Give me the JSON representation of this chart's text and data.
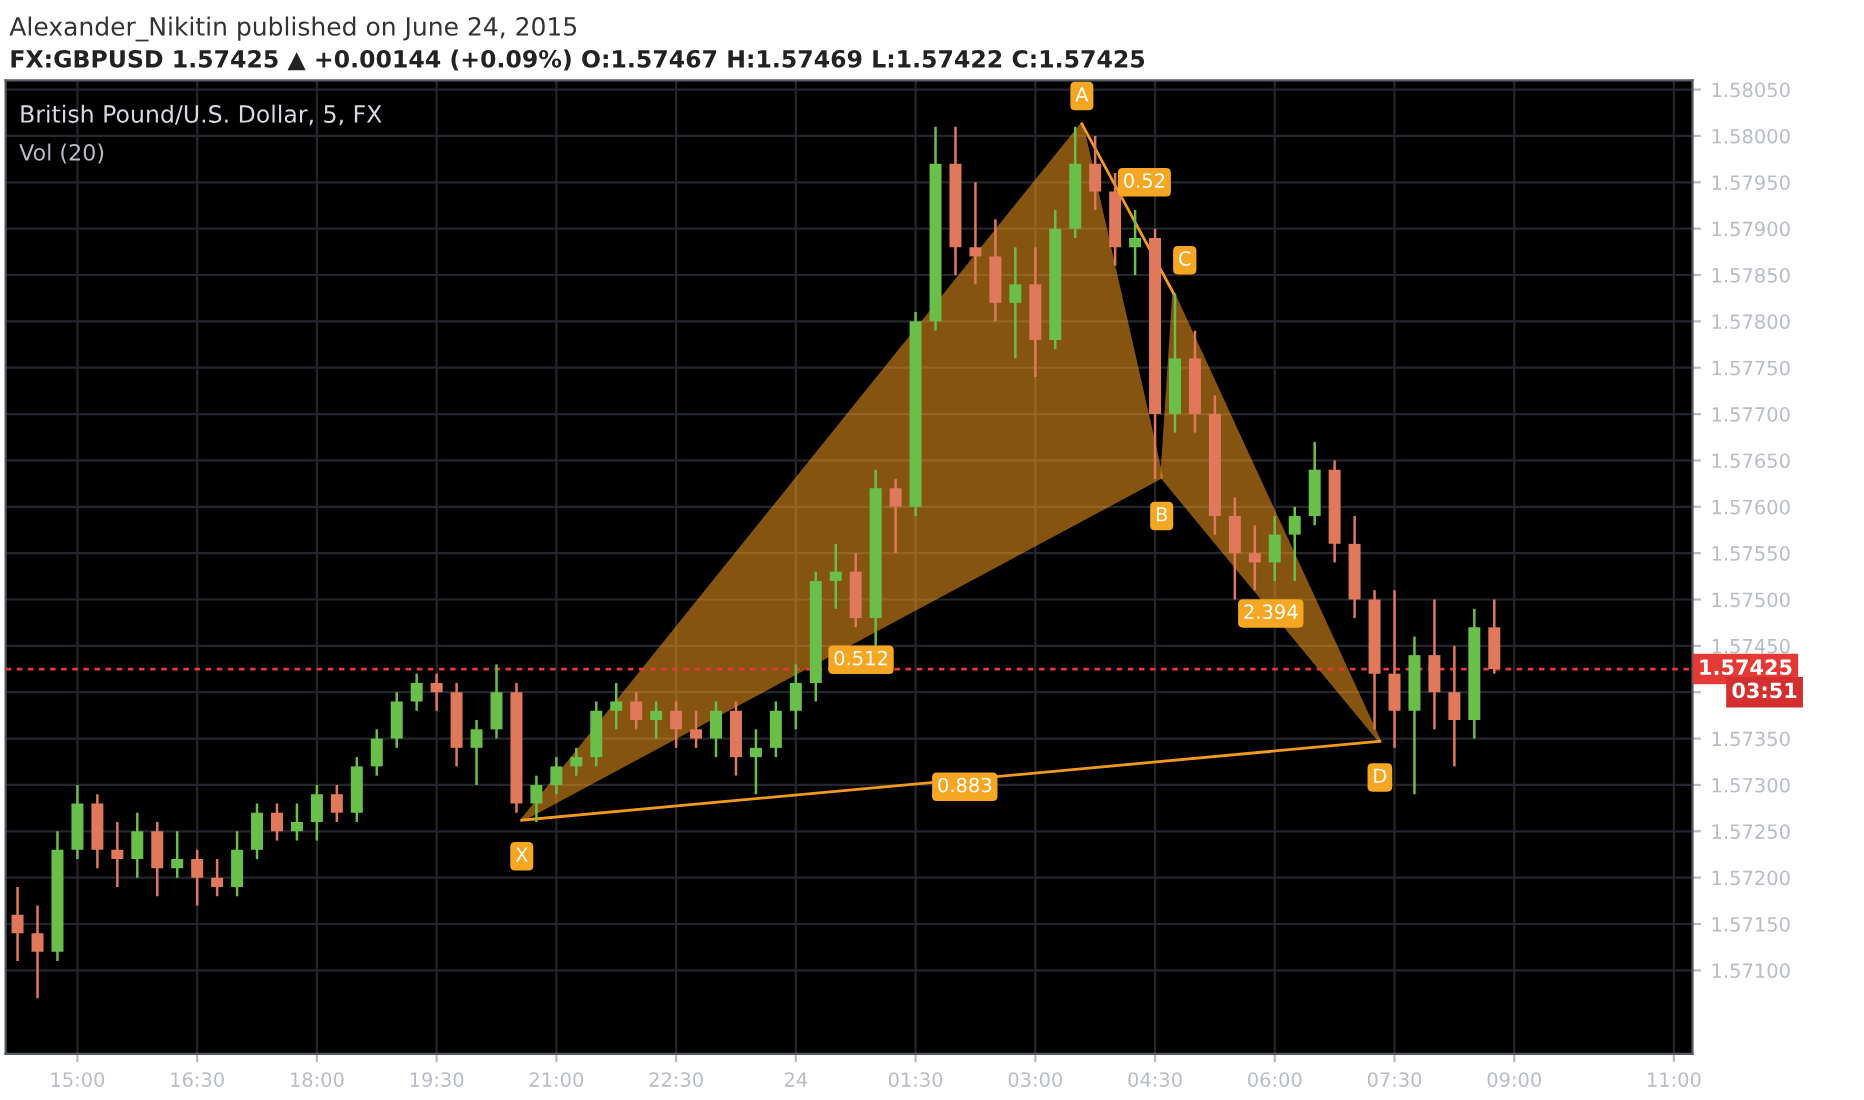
{
  "chart_data": {
    "type": "candlestick",
    "title": "British Pound/U.S. Dollar, 5, FX",
    "subtitle": "Vol (20)",
    "annotations": [
      "Alexander_Nikitin published on June 24, 2015",
      "FX:GBPUSD 1.57425 ▲ +0.00144 (+0.09%) O:1.57467 H:1.57469 L:1.57422 C:1.57425",
      "03:51",
      {
        "text": "X",
        "x": "2015-06-23T20:34",
        "y": 1.57262
      },
      {
        "text": "A",
        "x": "2015-06-24T03:35",
        "y": 1.58013
      },
      {
        "text": "B",
        "x": "2015-06-24T04:35",
        "y": 1.57632
      },
      {
        "text": "C",
        "x": "2015-06-24T04:44",
        "y": 1.5783
      },
      {
        "text": "D",
        "x": "2015-06-24T07:19",
        "y": 1.57347
      },
      {
        "text": "0.512",
        "x": "2015-06-24T00:49",
        "y": 1.57435
      },
      {
        "text": "0.52",
        "x": "2015-06-24T04:22",
        "y": 1.5795
      },
      {
        "text": "2.394",
        "x": "2015-06-24T05:57",
        "y": 1.57485
      },
      {
        "text": "0.883",
        "x": "2015-06-24T02:07",
        "y": 1.57298
      }
    ],
    "x": [
      "2015-06-23T14:15",
      "2015-06-23T14:30",
      "2015-06-23T14:45",
      "2015-06-23T15:00",
      "2015-06-23T15:15",
      "2015-06-23T15:30",
      "2015-06-23T15:45",
      "2015-06-23T16:00",
      "2015-06-23T16:15",
      "2015-06-23T16:30",
      "2015-06-23T16:45",
      "2015-06-23T17:00",
      "2015-06-23T17:15",
      "2015-06-23T17:30",
      "2015-06-23T17:45",
      "2015-06-23T18:00",
      "2015-06-23T18:15",
      "2015-06-23T18:30",
      "2015-06-23T18:45",
      "2015-06-23T19:00",
      "2015-06-23T19:15",
      "2015-06-23T19:30",
      "2015-06-23T19:45",
      "2015-06-23T20:00",
      "2015-06-23T20:15",
      "2015-06-23T20:30",
      "2015-06-23T20:45",
      "2015-06-23T21:00",
      "2015-06-23T21:15",
      "2015-06-23T21:30",
      "2015-06-23T21:45",
      "2015-06-23T22:00",
      "2015-06-23T22:15",
      "2015-06-23T22:30",
      "2015-06-23T22:45",
      "2015-06-23T23:00",
      "2015-06-23T23:15",
      "2015-06-23T23:30",
      "2015-06-23T23:45",
      "2015-06-24T00:00",
      "2015-06-24T00:15",
      "2015-06-24T00:30",
      "2015-06-24T00:45",
      "2015-06-24T01:00",
      "2015-06-24T01:15",
      "2015-06-24T01:30",
      "2015-06-24T01:45",
      "2015-06-24T02:00",
      "2015-06-24T02:15",
      "2015-06-24T02:30",
      "2015-06-24T02:45",
      "2015-06-24T03:00",
      "2015-06-24T03:15",
      "2015-06-24T03:30",
      "2015-06-24T03:45",
      "2015-06-24T04:00",
      "2015-06-24T04:15",
      "2015-06-24T04:30",
      "2015-06-24T04:45",
      "2015-06-24T05:00",
      "2015-06-24T05:15",
      "2015-06-24T05:30",
      "2015-06-24T05:45",
      "2015-06-24T06:00",
      "2015-06-24T06:15",
      "2015-06-24T06:30",
      "2015-06-24T06:45",
      "2015-06-24T07:00",
      "2015-06-24T07:15",
      "2015-06-24T07:30",
      "2015-06-24T07:45",
      "2015-06-24T08:00",
      "2015-06-24T08:15",
      "2015-06-24T08:30",
      "2015-06-24T08:45"
    ],
    "ohlc": [
      [
        1.5716,
        1.5719,
        1.5711,
        1.5714
      ],
      [
        1.5714,
        1.5717,
        1.5707,
        1.5712
      ],
      [
        1.5712,
        1.5725,
        1.5711,
        1.5723
      ],
      [
        1.5723,
        1.573,
        1.5722,
        1.5728
      ],
      [
        1.5728,
        1.5729,
        1.5721,
        1.5723
      ],
      [
        1.5723,
        1.5726,
        1.5719,
        1.5722
      ],
      [
        1.5722,
        1.5727,
        1.572,
        1.5725
      ],
      [
        1.5725,
        1.5726,
        1.5718,
        1.5721
      ],
      [
        1.5721,
        1.5725,
        1.572,
        1.5722
      ],
      [
        1.5722,
        1.5723,
        1.5717,
        1.572
      ],
      [
        1.572,
        1.5722,
        1.5718,
        1.5719
      ],
      [
        1.5719,
        1.5725,
        1.5718,
        1.5723
      ],
      [
        1.5723,
        1.5728,
        1.5722,
        1.5727
      ],
      [
        1.5727,
        1.5728,
        1.5724,
        1.5725
      ],
      [
        1.5725,
        1.5728,
        1.5724,
        1.5726
      ],
      [
        1.5726,
        1.573,
        1.5724,
        1.5729
      ],
      [
        1.5729,
        1.573,
        1.5726,
        1.5727
      ],
      [
        1.5727,
        1.5733,
        1.5726,
        1.5732
      ],
      [
        1.5732,
        1.5736,
        1.5731,
        1.5735
      ],
      [
        1.5735,
        1.574,
        1.5734,
        1.5739
      ],
      [
        1.5739,
        1.5742,
        1.5738,
        1.5741
      ],
      [
        1.5741,
        1.5742,
        1.5738,
        1.574
      ],
      [
        1.574,
        1.5741,
        1.5732,
        1.5734
      ],
      [
        1.5734,
        1.5737,
        1.573,
        1.5736
      ],
      [
        1.5736,
        1.5743,
        1.5735,
        1.574
      ],
      [
        1.574,
        1.5741,
        1.5727,
        1.5728
      ],
      [
        1.5728,
        1.5731,
        1.5726,
        1.573
      ],
      [
        1.573,
        1.5733,
        1.5729,
        1.5732
      ],
      [
        1.5732,
        1.5734,
        1.5731,
        1.5733
      ],
      [
        1.5733,
        1.5739,
        1.5732,
        1.5738
      ],
      [
        1.5738,
        1.5741,
        1.5736,
        1.5739
      ],
      [
        1.5739,
        1.574,
        1.5736,
        1.5737
      ],
      [
        1.5737,
        1.5739,
        1.5735,
        1.5738
      ],
      [
        1.5738,
        1.5739,
        1.5734,
        1.5736
      ],
      [
        1.5736,
        1.5738,
        1.5734,
        1.5735
      ],
      [
        1.5735,
        1.5739,
        1.5733,
        1.5738
      ],
      [
        1.5738,
        1.5739,
        1.5731,
        1.5733
      ],
      [
        1.5733,
        1.5736,
        1.5729,
        1.5734
      ],
      [
        1.5734,
        1.5739,
        1.5733,
        1.5738
      ],
      [
        1.5738,
        1.5743,
        1.5736,
        1.5741
      ],
      [
        1.5741,
        1.5753,
        1.5739,
        1.5752
      ],
      [
        1.5752,
        1.5756,
        1.5749,
        1.5753
      ],
      [
        1.5753,
        1.5755,
        1.5747,
        1.5748
      ],
      [
        1.5748,
        1.5764,
        1.5745,
        1.5762
      ],
      [
        1.5762,
        1.5763,
        1.5755,
        1.576
      ],
      [
        1.576,
        1.5781,
        1.5759,
        1.578
      ],
      [
        1.578,
        1.5801,
        1.5779,
        1.5797
      ],
      [
        1.5797,
        1.5801,
        1.5785,
        1.5788
      ],
      [
        1.5788,
        1.5795,
        1.5784,
        1.5787
      ],
      [
        1.5787,
        1.5791,
        1.578,
        1.5782
      ],
      [
        1.5782,
        1.5788,
        1.5776,
        1.5784
      ],
      [
        1.5784,
        1.5788,
        1.5774,
        1.5778
      ],
      [
        1.5778,
        1.5792,
        1.5777,
        1.579
      ],
      [
        1.579,
        1.5801,
        1.5789,
        1.5797
      ],
      [
        1.5797,
        1.58,
        1.5792,
        1.5794
      ],
      [
        1.5794,
        1.5796,
        1.5786,
        1.5788
      ],
      [
        1.5788,
        1.5792,
        1.5785,
        1.5789
      ],
      [
        1.5789,
        1.579,
        1.5763,
        1.577
      ],
      [
        1.577,
        1.5783,
        1.5768,
        1.5776
      ],
      [
        1.5776,
        1.5779,
        1.5768,
        1.577
      ],
      [
        1.577,
        1.5772,
        1.5757,
        1.5759
      ],
      [
        1.5759,
        1.5761,
        1.575,
        1.5755
      ],
      [
        1.5755,
        1.5758,
        1.5751,
        1.5754
      ],
      [
        1.5754,
        1.5759,
        1.5752,
        1.5757
      ],
      [
        1.5757,
        1.576,
        1.5752,
        1.5759
      ],
      [
        1.5759,
        1.5767,
        1.5758,
        1.5764
      ],
      [
        1.5764,
        1.5765,
        1.5754,
        1.5756
      ],
      [
        1.5756,
        1.5759,
        1.5748,
        1.575
      ],
      [
        1.575,
        1.5751,
        1.5736,
        1.5742
      ],
      [
        1.5742,
        1.5751,
        1.5734,
        1.5738
      ],
      [
        1.5738,
        1.5746,
        1.5729,
        1.5744
      ],
      [
        1.5744,
        1.575,
        1.5736,
        1.574
      ],
      [
        1.574,
        1.5745,
        1.5732,
        1.5737
      ],
      [
        1.5737,
        1.5749,
        1.5735,
        1.5747
      ],
      [
        1.5747,
        1.575,
        1.5742,
        1.57425
      ]
    ],
    "colors": [
      "#e0795c",
      "#e0795c",
      "#6abf4b",
      "#6abf4b",
      "#e0795c",
      "#e0795c",
      "#6abf4b",
      "#e0795c",
      "#6abf4b",
      "#e0795c",
      "#e0795c",
      "#6abf4b",
      "#6abf4b",
      "#e0795c",
      "#6abf4b",
      "#6abf4b",
      "#e0795c",
      "#6abf4b",
      "#6abf4b",
      "#6abf4b",
      "#6abf4b",
      "#e0795c",
      "#e0795c",
      "#6abf4b",
      "#6abf4b",
      "#e0795c",
      "#6abf4b",
      "#6abf4b",
      "#6abf4b",
      "#6abf4b",
      "#6abf4b",
      "#e0795c",
      "#6abf4b",
      "#e0795c",
      "#e0795c",
      "#6abf4b",
      "#e0795c",
      "#6abf4b",
      "#6abf4b",
      "#6abf4b",
      "#6abf4b",
      "#6abf4b",
      "#e0795c",
      "#6abf4b",
      "#e0795c",
      "#6abf4b",
      "#6abf4b",
      "#e0795c",
      "#e0795c",
      "#e0795c",
      "#6abf4b",
      "#e0795c",
      "#6abf4b",
      "#6abf4b",
      "#e0795c",
      "#e0795c",
      "#6abf4b",
      "#e0795c",
      "#6abf4b",
      "#e0795c",
      "#e0795c",
      "#e0795c",
      "#e0795c",
      "#6abf4b",
      "#6abf4b",
      "#6abf4b",
      "#e0795c",
      "#e0795c",
      "#e0795c",
      "#e0795c",
      "#6abf4b",
      "#e0795c",
      "#e0795c",
      "#6abf4b",
      "#e0795c"
    ],
    "series": [
      {
        "type": "area",
        "color": "#f39a1e",
        "x": [
          "2015-06-23T20:34",
          "2015-06-24T03:35",
          "2015-06-24T04:35",
          "2015-06-23T20:34"
        ],
        "values": [
          1.57262,
          1.58013,
          1.57632,
          1.57262
        ]
      },
      {
        "type": "area",
        "color": "#f39a1e",
        "x": [
          "2015-06-24T04:35",
          "2015-06-24T04:44",
          "2015-06-24T07:19",
          "2015-06-24T04:35"
        ],
        "values": [
          1.57632,
          1.5783,
          1.57347,
          1.57632
        ]
      },
      {
        "type": "line",
        "color": "#f39a1e",
        "x": [
          "2015-06-23T20:34",
          "2015-06-24T07:19"
        ],
        "values": [
          1.57262,
          1.57347
        ]
      },
      {
        "type": "line",
        "color": "#f39a1e",
        "x": [
          "2015-06-24T03:35",
          "2015-06-24T04:44"
        ],
        "values": [
          1.58013,
          1.5783
        ]
      }
    ],
    "ref_lines": [
      {
        "axis": "y",
        "value": 1.57425,
        "label": "1.57425",
        "color": "#e53935",
        "line_style": "dotted"
      }
    ],
    "xlim": [
      "2015-06-23T14:06",
      "2015-06-24T11:14"
    ],
    "ylim": [
      1.5701,
      1.5806
    ],
    "xticks": [
      {
        "value": "2015-06-23T15:00",
        "label": "15:00"
      },
      {
        "value": "2015-06-23T16:30",
        "label": "16:30"
      },
      {
        "value": "2015-06-23T18:00",
        "label": "18:00"
      },
      {
        "value": "2015-06-23T19:30",
        "label": "19:30"
      },
      {
        "value": "2015-06-23T21:00",
        "label": "21:00"
      },
      {
        "value": "2015-06-23T22:30",
        "label": "22:30"
      },
      {
        "value": "2015-06-24T00:00",
        "label": "24"
      },
      {
        "value": "2015-06-24T01:30",
        "label": "01:30"
      },
      {
        "value": "2015-06-24T03:00",
        "label": "03:00"
      },
      {
        "value": "2015-06-24T04:30",
        "label": "04:30"
      },
      {
        "value": "2015-06-24T06:00",
        "label": "06:00"
      },
      {
        "value": "2015-06-24T07:30",
        "label": "07:30"
      },
      {
        "value": "2015-06-24T09:00",
        "label": "09:00"
      },
      {
        "value": "2015-06-24T11:00",
        "label": "11:00"
      }
    ],
    "yticks": [
      {
        "value": 1.571,
        "label": "1.57100"
      },
      {
        "value": 1.5715,
        "label": "1.57150"
      },
      {
        "value": 1.572,
        "label": "1.57200"
      },
      {
        "value": 1.5725,
        "label": "1.57250"
      },
      {
        "value": 1.573,
        "label": "1.57300"
      },
      {
        "value": 1.5735,
        "label": "1.57350"
      },
      {
        "value": 1.574,
        "label": null
      },
      {
        "value": 1.5745,
        "label": "1.57450"
      },
      {
        "value": 1.575,
        "label": "1.57500"
      },
      {
        "value": 1.5755,
        "label": "1.57550"
      },
      {
        "value": 1.576,
        "label": "1.57600"
      },
      {
        "value": 1.5765,
        "label": "1.57650"
      },
      {
        "value": 1.577,
        "label": "1.57700"
      },
      {
        "value": 1.5775,
        "label": "1.57750"
      },
      {
        "value": 1.578,
        "label": "1.57800"
      },
      {
        "value": 1.5785,
        "label": "1.57850"
      },
      {
        "value": 1.579,
        "label": "1.57900"
      },
      {
        "value": 1.5795,
        "label": "1.57950"
      },
      {
        "value": 1.58,
        "label": "1.58000"
      },
      {
        "value": 1.5805,
        "label": "1.58050"
      }
    ],
    "grid": true
  }
}
